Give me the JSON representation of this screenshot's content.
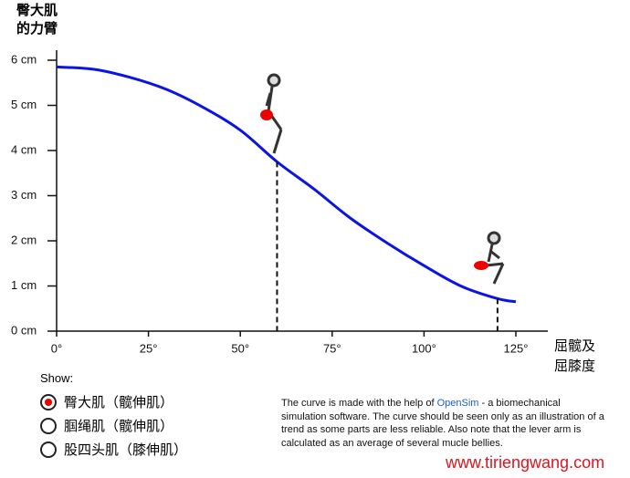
{
  "chart_data": {
    "type": "line",
    "y_label": [
      "臀大肌",
      "的力臂"
    ],
    "x_label": [
      "屈髋及",
      "屈膝度"
    ],
    "x": [
      0,
      10,
      20,
      30,
      40,
      50,
      60,
      70,
      80,
      90,
      100,
      110,
      120,
      125
    ],
    "series": [
      {
        "color": "#0a14e6",
        "values": [
          5.85,
          5.8,
          5.62,
          5.35,
          4.95,
          4.45,
          3.75,
          3.15,
          2.5,
          1.95,
          1.45,
          1.0,
          0.72,
          0.65
        ]
      }
    ],
    "xlim": [
      0,
      125
    ],
    "ylim": [
      0,
      6
    ],
    "xticks": [
      {
        "value": 0,
        "label": "0°"
      },
      {
        "value": 25,
        "label": "25°"
      },
      {
        "value": 50,
        "label": "50°"
      },
      {
        "value": 75,
        "label": "75°"
      },
      {
        "value": 100,
        "label": "100°"
      },
      {
        "value": 125,
        "label": "125°"
      }
    ],
    "yticks": [
      {
        "value": 0,
        "label": "0 cm"
      },
      {
        "value": 1,
        "label": "1 cm"
      },
      {
        "value": 2,
        "label": "2 cm"
      },
      {
        "value": 3,
        "label": "3 cm"
      },
      {
        "value": 4,
        "label": "4 cm"
      },
      {
        "value": 5,
        "label": "5 cm"
      },
      {
        "value": 6,
        "label": "6 cm"
      }
    ]
  },
  "controls": {
    "label": "Show:",
    "options": [
      {
        "label": "臀大肌（髋伸肌）",
        "selected": true
      },
      {
        "label": "腘绳肌（髋伸肌）",
        "selected": false
      },
      {
        "label": "股四头肌（膝伸肌）",
        "selected": false
      }
    ]
  },
  "note": {
    "before": "The curve is made with the help of ",
    "link": "OpenSim",
    "after": " - a biomechanical simulation software. The curve should be seen only as an illustration of a trend as some parts are less reliable. Also note that the lever arm is calculated as an average of several mucle bellies."
  },
  "watermark": "www.tiriengwang.com"
}
